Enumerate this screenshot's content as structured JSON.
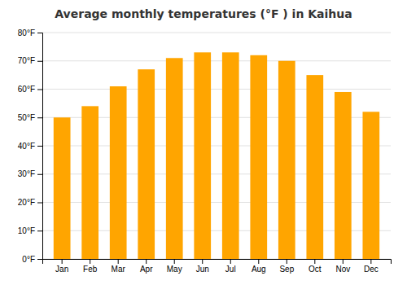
{
  "chart_data": {
    "type": "bar",
    "title": "Average monthly temperatures (°F ) in Kaihua",
    "categories": [
      "Jan",
      "Feb",
      "Mar",
      "Apr",
      "May",
      "Jun",
      "Jul",
      "Aug",
      "Sep",
      "Oct",
      "Nov",
      "Dec"
    ],
    "values": [
      50,
      54,
      61,
      67,
      71,
      73,
      73,
      72,
      70,
      65,
      59,
      52
    ],
    "color": "#FFA500",
    "ylim": [
      0,
      80
    ],
    "yticks": [
      {
        "value": 0,
        "label": "0°F"
      },
      {
        "value": 10,
        "label": "10°F"
      },
      {
        "value": 20,
        "label": "20°F"
      },
      {
        "value": 30,
        "label": "30°F"
      },
      {
        "value": 40,
        "label": "40°F"
      },
      {
        "value": 50,
        "label": "50°F"
      },
      {
        "value": 60,
        "label": "60°F"
      },
      {
        "value": 70,
        "label": "70°F"
      },
      {
        "value": 80,
        "label": "80°F"
      }
    ],
    "grid": true
  }
}
